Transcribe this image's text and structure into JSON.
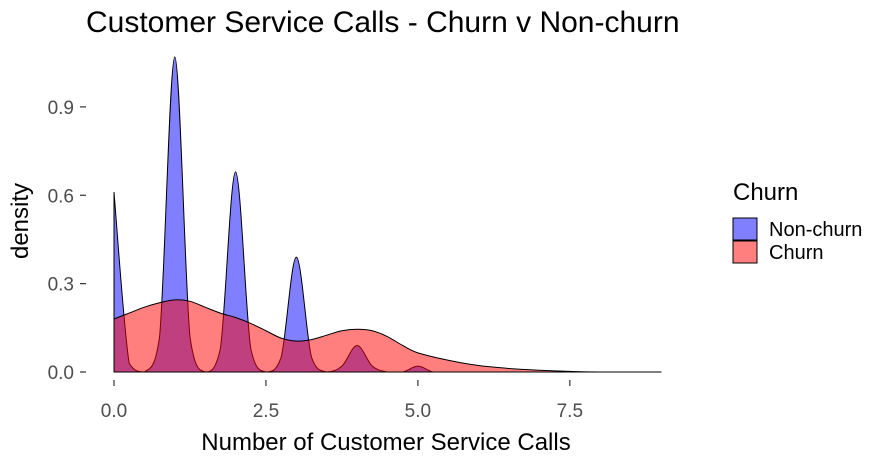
{
  "chart_data": {
    "type": "area",
    "subtype": "density",
    "title": "Customer Service Calls - Churn v Non-churn",
    "xlabel": "Number of Customer Service Calls",
    "ylabel": "density",
    "xlim": [
      0,
      9
    ],
    "ylim": [
      0,
      1.1
    ],
    "x_ticks": [
      0,
      2.5,
      5,
      7.5
    ],
    "x_tick_labels": [
      "0.0",
      "2.5",
      "5.0",
      "7.5"
    ],
    "y_ticks": [
      0,
      0.3,
      0.6,
      0.9
    ],
    "y_tick_labels": [
      "0.0",
      "0.3",
      "0.6",
      "0.9"
    ],
    "grid": false,
    "legend": {
      "title": "Churn",
      "position": "right",
      "entries": [
        "Non-churn",
        "Churn"
      ]
    },
    "series": [
      {
        "name": "Non-churn",
        "color": "#0000ff",
        "opacity": 0.5,
        "x": [
          0,
          0.25,
          0.5,
          0.75,
          1,
          1.25,
          1.5,
          1.75,
          2,
          2.25,
          2.5,
          2.75,
          3,
          3.25,
          3.5,
          3.75,
          4,
          4.25,
          4.5,
          4.75,
          5,
          5.25,
          5.5,
          6,
          6.5,
          7,
          9
        ],
        "y": [
          0.61,
          0.03,
          0.0,
          0.12,
          1.07,
          0.12,
          0.0,
          0.08,
          0.68,
          0.08,
          0.0,
          0.05,
          0.39,
          0.05,
          0.0,
          0.02,
          0.09,
          0.02,
          0.0,
          0.0,
          0.02,
          0.0,
          0.0,
          0.0,
          0.0,
          0.0,
          0.0
        ]
      },
      {
        "name": "Churn",
        "color": "#ff0000",
        "opacity": 0.5,
        "x": [
          0,
          0.25,
          0.5,
          0.75,
          1,
          1.25,
          1.5,
          1.75,
          2,
          2.25,
          2.5,
          2.75,
          3,
          3.25,
          3.5,
          3.75,
          4,
          4.25,
          4.5,
          4.75,
          5,
          5.5,
          6,
          6.5,
          7,
          7.5,
          8,
          9
        ],
        "y": [
          0.18,
          0.2,
          0.22,
          0.235,
          0.245,
          0.24,
          0.22,
          0.2,
          0.185,
          0.165,
          0.14,
          0.115,
          0.105,
          0.11,
          0.125,
          0.14,
          0.145,
          0.14,
          0.12,
          0.09,
          0.065,
          0.04,
          0.022,
          0.012,
          0.006,
          0.002,
          0.0,
          0.0
        ]
      }
    ]
  }
}
